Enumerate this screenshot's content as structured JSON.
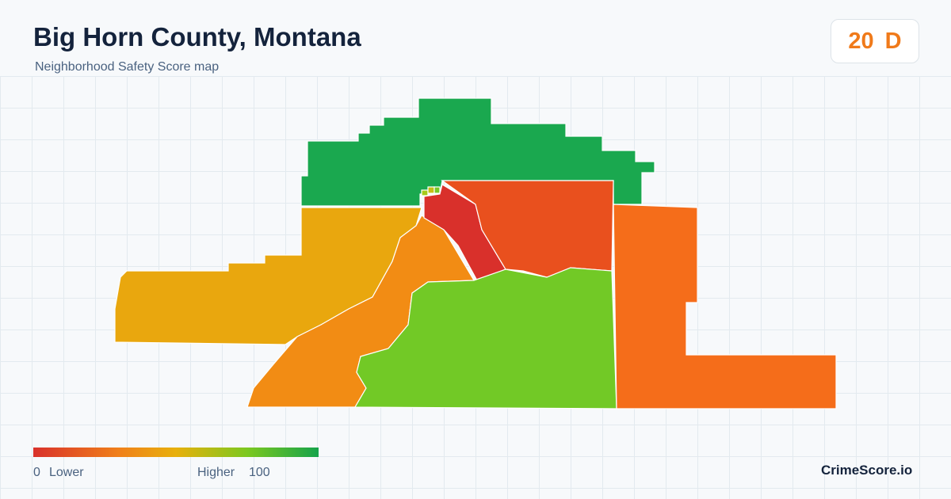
{
  "header": {
    "title": "Big Horn County, Montana",
    "subtitle": "Neighborhood Safety Score map"
  },
  "score": {
    "value": 20,
    "grade": "D"
  },
  "legend": {
    "min": 0,
    "min_label": "Lower",
    "max_label": "Higher",
    "max": 100
  },
  "brand": "CrimeScore.io"
}
